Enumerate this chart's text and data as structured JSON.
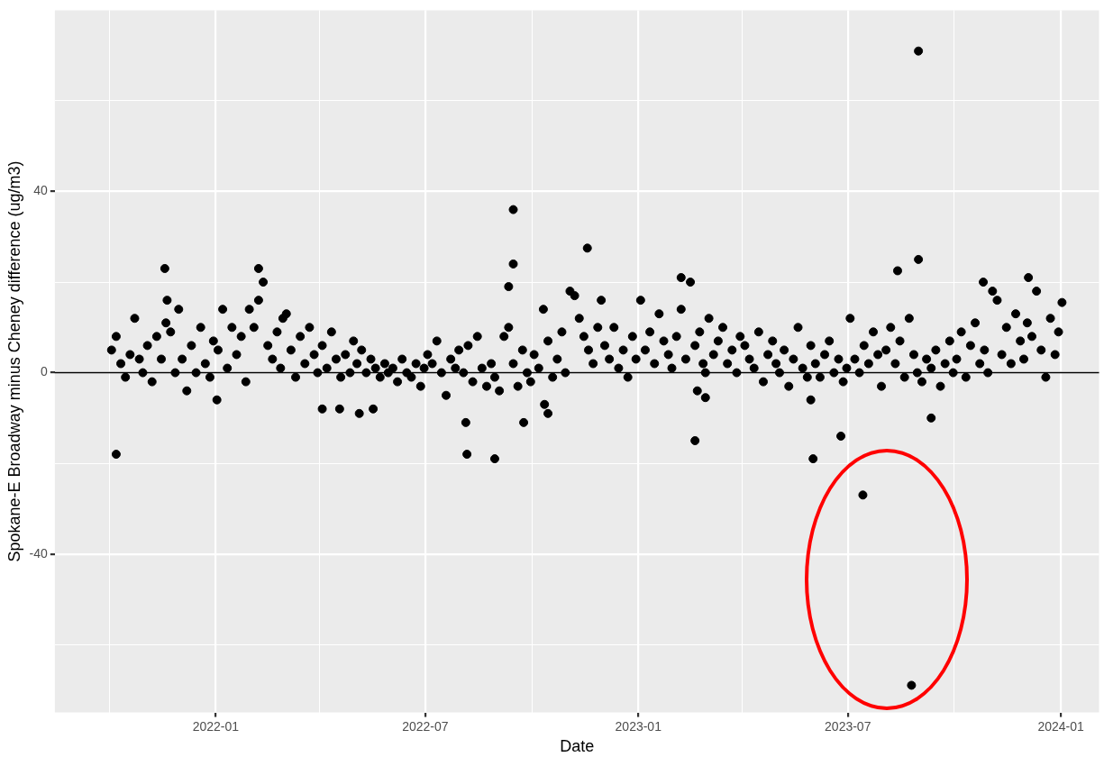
{
  "chart_data": {
    "type": "scatter",
    "xlabel": "Date",
    "ylabel": "Spokane-E Broadway minus Cheney difference (ug/m3)",
    "xlim": [
      "2021-08-15",
      "2024-02-03"
    ],
    "ylim": [
      -75,
      80
    ],
    "xticks": [
      {
        "value": "2021-10",
        "label": null
      },
      "2022-01",
      {
        "value": "2022-04",
        "label": null
      },
      "2022-07",
      {
        "value": "2022-10",
        "label": null
      },
      "2023-01",
      {
        "value": "2023-04",
        "label": null
      },
      "2023-07",
      {
        "value": "2023-10",
        "label": null
      },
      "2024-01"
    ],
    "yticks": [
      {
        "value": -60,
        "label": null
      },
      -40,
      {
        "value": -20,
        "label": null
      },
      0,
      {
        "value": 20,
        "label": null
      },
      40,
      {
        "value": 60,
        "label": null
      }
    ],
    "grid": true,
    "marker": "circle",
    "legend": false,
    "ref_lines": [
      {
        "axis": "y",
        "value": 0,
        "color": "#000000"
      }
    ],
    "series": [
      {
        "color": "#000000",
        "x": [
          "2021-10-03",
          "2021-10-07",
          "2021-10-11",
          "2021-10-15",
          "2021-10-19",
          "2021-10-23",
          "2021-10-27",
          "2021-10-30",
          "2021-11-03",
          "2021-11-07",
          "2021-11-11",
          "2021-11-15",
          "2021-11-19",
          "2021-11-23",
          "2021-11-27",
          "2021-11-30",
          "2021-12-03",
          "2021-12-07",
          "2021-12-11",
          "2021-12-15",
          "2021-12-19",
          "2021-12-23",
          "2021-12-27",
          "2021-12-30",
          "2022-01-03",
          "2022-01-07",
          "2022-01-11",
          "2022-01-15",
          "2022-01-19",
          "2022-01-23",
          "2022-01-27",
          "2022-01-30",
          "2022-02-03",
          "2022-02-07",
          "2022-02-11",
          "2022-02-15",
          "2022-02-19",
          "2022-02-23",
          "2022-02-26",
          "2022-02-28",
          "2022-03-03",
          "2022-03-07",
          "2022-03-11",
          "2022-03-15",
          "2022-03-19",
          "2022-03-23",
          "2022-03-27",
          "2022-03-30",
          "2022-04-03",
          "2022-04-07",
          "2022-04-11",
          "2022-04-15",
          "2022-04-19",
          "2022-04-23",
          "2022-04-27",
          "2022-04-30",
          "2022-05-03",
          "2022-05-07",
          "2022-05-11",
          "2022-05-15",
          "2022-05-19",
          "2022-05-23",
          "2022-05-27",
          "2022-05-30",
          "2022-06-03",
          "2022-06-07",
          "2022-06-11",
          "2022-06-15",
          "2022-06-19",
          "2022-06-23",
          "2022-06-27",
          "2022-06-30",
          "2022-07-03",
          "2022-07-07",
          "2022-07-11",
          "2022-07-15",
          "2022-07-19",
          "2022-07-23",
          "2022-07-27",
          "2022-07-30",
          "2022-08-03",
          "2022-08-07",
          "2022-08-11",
          "2022-08-15",
          "2022-08-19",
          "2022-08-23",
          "2022-08-27",
          "2022-08-30",
          "2022-09-03",
          "2022-09-07",
          "2022-09-11",
          "2022-09-15",
          "2022-09-19",
          "2022-09-23",
          "2022-09-27",
          "2022-09-30",
          "2022-10-03",
          "2022-10-07",
          "2022-10-11",
          "2022-10-15",
          "2022-10-19",
          "2022-10-23",
          "2022-10-27",
          "2022-10-30",
          "2022-11-03",
          "2022-11-07",
          "2022-11-11",
          "2022-11-15",
          "2022-11-19",
          "2022-11-23",
          "2022-11-27",
          "2022-11-30",
          "2022-12-03",
          "2022-12-07",
          "2022-12-11",
          "2022-12-15",
          "2022-12-19",
          "2022-12-23",
          "2022-12-27",
          "2022-12-30",
          "2023-01-03",
          "2023-01-07",
          "2023-01-11",
          "2023-01-15",
          "2023-01-19",
          "2023-01-23",
          "2023-01-27",
          "2023-01-30",
          "2023-02-03",
          "2023-02-07",
          "2023-02-11",
          "2023-02-15",
          "2023-02-19",
          "2023-02-23",
          "2023-02-26",
          "2023-02-28",
          "2023-03-03",
          "2023-03-07",
          "2023-03-11",
          "2023-03-15",
          "2023-03-19",
          "2023-03-23",
          "2023-03-27",
          "2023-03-30",
          "2023-04-03",
          "2023-04-07",
          "2023-04-11",
          "2023-04-15",
          "2023-04-19",
          "2023-04-23",
          "2023-04-27",
          "2023-04-30",
          "2023-05-03",
          "2023-05-07",
          "2023-05-11",
          "2023-05-15",
          "2023-05-19",
          "2023-05-23",
          "2023-05-27",
          "2023-05-30",
          "2023-06-03",
          "2023-06-07",
          "2023-06-11",
          "2023-06-15",
          "2023-06-19",
          "2023-06-23",
          "2023-06-27",
          "2023-06-30",
          "2023-07-03",
          "2023-07-07",
          "2023-07-11",
          "2023-07-15",
          "2023-07-19",
          "2023-07-23",
          "2023-07-27",
          "2023-07-30",
          "2023-08-03",
          "2023-08-07",
          "2023-08-11",
          "2023-08-15",
          "2023-08-19",
          "2023-08-23",
          "2023-08-27",
          "2023-08-30",
          "2023-09-03",
          "2023-09-07",
          "2023-09-11",
          "2023-09-15",
          "2023-09-19",
          "2023-09-23",
          "2023-09-27",
          "2023-09-30",
          "2023-10-03",
          "2023-10-07",
          "2023-10-11",
          "2023-10-15",
          "2023-10-19",
          "2023-10-23",
          "2023-10-27",
          "2023-10-30",
          "2023-11-03",
          "2023-11-07",
          "2023-11-11",
          "2023-11-15",
          "2023-11-19",
          "2023-11-23",
          "2023-11-27",
          "2023-11-30",
          "2023-12-03",
          "2023-12-07",
          "2023-12-11",
          "2023-12-15",
          "2023-12-19",
          "2023-12-23",
          "2023-12-27",
          "2023-12-30",
          "2021-10-07",
          "2021-11-18",
          "2021-11-20",
          "2022-01-02",
          "2022-02-07",
          "2022-04-03",
          "2022-04-18",
          "2022-05-05",
          "2022-05-17",
          "2022-08-05",
          "2022-08-06",
          "2022-08-30",
          "2022-09-15",
          "2022-09-15",
          "2022-09-11",
          "2022-09-24",
          "2022-10-12",
          "2022-10-15",
          "2022-11-18",
          "2023-02-19",
          "2023-02-21",
          "2023-02-28",
          "2023-02-07",
          "2023-06-01",
          "2023-05-30",
          "2023-06-25",
          "2023-07-14",
          "2023-08-25",
          "2023-08-31",
          "2023-08-31",
          "2023-08-13",
          "2023-09-11",
          "2023-10-26",
          "2023-12-04",
          "2024-01-02"
        ],
        "values": [
          5,
          8,
          2,
          -1,
          4,
          12,
          3,
          0,
          6,
          -2,
          8,
          3,
          11,
          9,
          0,
          14,
          3,
          -4,
          6,
          0,
          10,
          2,
          -1,
          7,
          5,
          14,
          1,
          10,
          4,
          8,
          -2,
          14,
          10,
          16,
          20,
          6,
          3,
          9,
          1,
          12,
          13,
          5,
          -1,
          8,
          2,
          10,
          4,
          0,
          6,
          1,
          9,
          3,
          -1,
          4,
          0,
          7,
          2,
          5,
          0,
          3,
          1,
          -1,
          2,
          0,
          1,
          -2,
          3,
          0,
          -1,
          2,
          -3,
          1,
          4,
          2,
          7,
          0,
          -5,
          3,
          1,
          5,
          0,
          6,
          -2,
          8,
          1,
          -3,
          2,
          -1,
          -4,
          8,
          10,
          2,
          -3,
          5,
          0,
          -2,
          4,
          1,
          14,
          7,
          -1,
          3,
          9,
          0,
          18,
          17,
          12,
          8,
          5,
          2,
          10,
          16,
          6,
          3,
          10,
          1,
          5,
          -1,
          8,
          3,
          16,
          5,
          9,
          2,
          13,
          7,
          4,
          1,
          8,
          14,
          3,
          20,
          6,
          9,
          2,
          0,
          12,
          4,
          7,
          10,
          2,
          5,
          0,
          8,
          6,
          3,
          1,
          9,
          -2,
          4,
          7,
          2,
          0,
          5,
          -3,
          3,
          10,
          1,
          -1,
          6,
          2,
          -1,
          4,
          7,
          0,
          3,
          -2,
          1,
          12,
          3,
          0,
          6,
          2,
          9,
          4,
          -3,
          5,
          10,
          2,
          7,
          -1,
          12,
          4,
          0,
          -2,
          3,
          1,
          5,
          -3,
          2,
          7,
          0,
          3,
          9,
          -1,
          6,
          11,
          2,
          5,
          0,
          18,
          16,
          4,
          10,
          2,
          13,
          7,
          3,
          11,
          8,
          18,
          5,
          -1,
          12,
          4,
          9,
          -18,
          23,
          16,
          -6,
          23,
          -8,
          -8,
          -9,
          -8,
          -11,
          -18,
          -19,
          36,
          24,
          19,
          -11,
          -7,
          -9,
          27.5,
          -15,
          -4,
          -5.5,
          21,
          -19,
          -6,
          -14,
          -27,
          -69,
          71,
          25,
          22.5,
          -10,
          20,
          21,
          15.5
        ]
      }
    ]
  }
}
